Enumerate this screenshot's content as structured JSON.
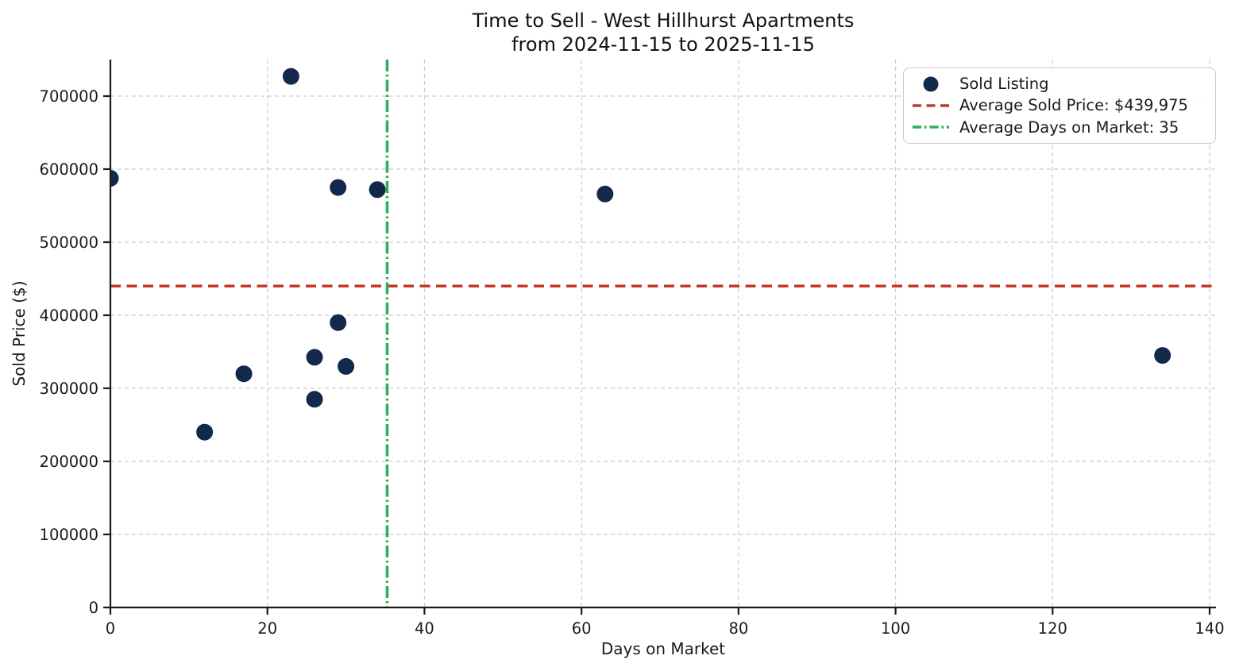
{
  "page": {
    "background": "#ffffff",
    "text_color": "#1a1a1a"
  },
  "chart_data": {
    "type": "scatter",
    "title": "Time to Sell - West Hillhurst Apartments",
    "subtitle": "from 2024-11-15 to 2025-11-15",
    "xlabel": "Days on Market",
    "ylabel": "Sold Price ($)",
    "xlim": [
      0,
      140
    ],
    "ylim": [
      0,
      750000
    ],
    "xticks": [
      0,
      20,
      40,
      60,
      80,
      100,
      120,
      140
    ],
    "yticks": [
      0,
      100000,
      200000,
      300000,
      400000,
      500000,
      600000,
      700000
    ],
    "grid": true,
    "grid_color": "#cccccc",
    "grid_style": "dashed",
    "axis_color": "#1a1a1a",
    "legend_position": "upper-right",
    "series": [
      {
        "name": "Sold Listing",
        "type": "scatter",
        "color": "#13294b",
        "marker": "circle",
        "points": [
          {
            "days_on_market": 0,
            "sold_price": 587500
          },
          {
            "days_on_market": 12,
            "sold_price": 240000
          },
          {
            "days_on_market": 17,
            "sold_price": 319900
          },
          {
            "days_on_market": 23,
            "sold_price": 727000
          },
          {
            "days_on_market": 26,
            "sold_price": 285000
          },
          {
            "days_on_market": 26,
            "sold_price": 342500
          },
          {
            "days_on_market": 29,
            "sold_price": 389900
          },
          {
            "days_on_market": 29,
            "sold_price": 574900
          },
          {
            "days_on_market": 30,
            "sold_price": 330000
          },
          {
            "days_on_market": 34,
            "sold_price": 572000
          },
          {
            "days_on_market": 63,
            "sold_price": 566000
          },
          {
            "days_on_market": 134,
            "sold_price": 345000
          }
        ]
      }
    ],
    "reference_lines": [
      {
        "label": "Average Sold Price: $439,975",
        "orientation": "horizontal",
        "value": 439975,
        "color": "#c0392b",
        "line_style": "dashed"
      },
      {
        "label": "Average Days on Market: 35",
        "orientation": "vertical",
        "value": 35.25,
        "display_value": 35,
        "color": "#27ae60",
        "line_style": "dashdot"
      }
    ],
    "legend": {
      "items": [
        {
          "label": "Sold Listing",
          "marker": "dot",
          "color": "#13294b"
        },
        {
          "label": "Average Sold Price: $439,975",
          "marker": "dashed-line",
          "color": "#c0392b"
        },
        {
          "label": "Average Days on Market: 35",
          "marker": "dashdot-line",
          "color": "#27ae60"
        }
      ]
    }
  }
}
